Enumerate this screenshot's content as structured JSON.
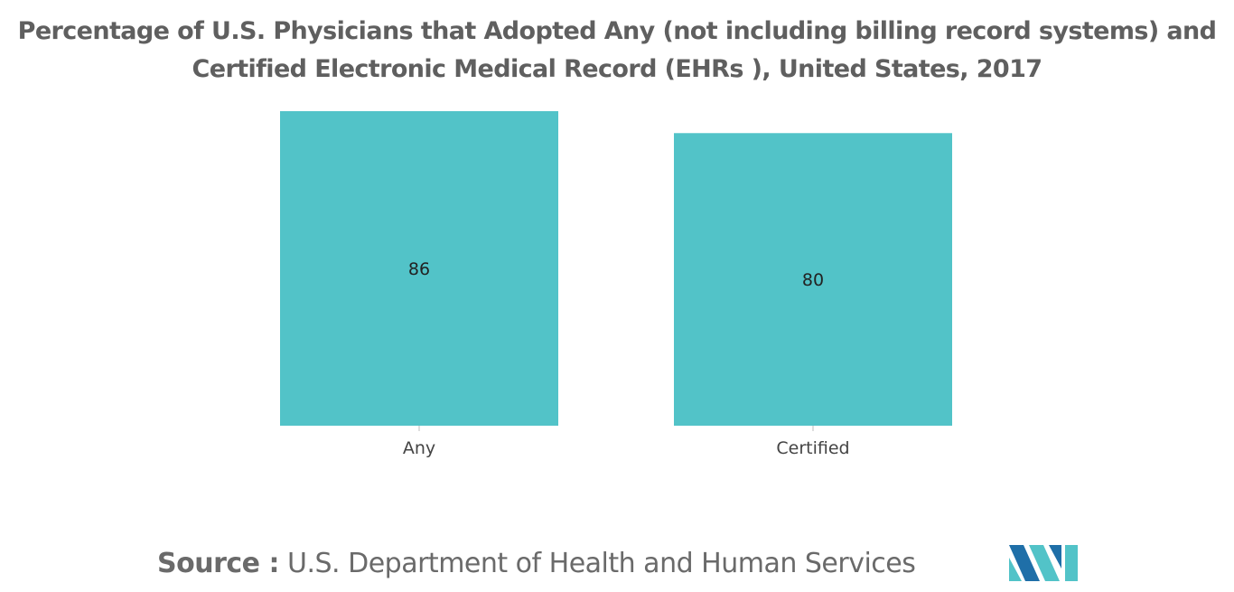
{
  "chart_data": {
    "type": "bar",
    "title": "Percentage of U.S. Physicians that Adopted Any (not including billing record systems) and Certified Electronic Medical Record (EHRs ), United States, 2017",
    "title_lines": [
      "Percentage of U.S. Physicians that Adopted Any (not including billing record systems) and",
      "Certified Electronic Medical Record (EHRs ), United States, 2017"
    ],
    "categories": [
      "Any",
      "Certified"
    ],
    "values": [
      86,
      80
    ],
    "data_labels": [
      "86",
      "80"
    ],
    "ylim": [
      0,
      86
    ],
    "xlabel": "",
    "ylabel": "",
    "grid": false,
    "bar_color": "#52c3c8"
  },
  "source": {
    "label": "Source :",
    "text": "U.S. Department of Health and Human Services"
  },
  "logo": {
    "icon": "mordor-intelligence-logo-icon",
    "colors": [
      "#1f6fa8",
      "#52c3c8"
    ]
  }
}
